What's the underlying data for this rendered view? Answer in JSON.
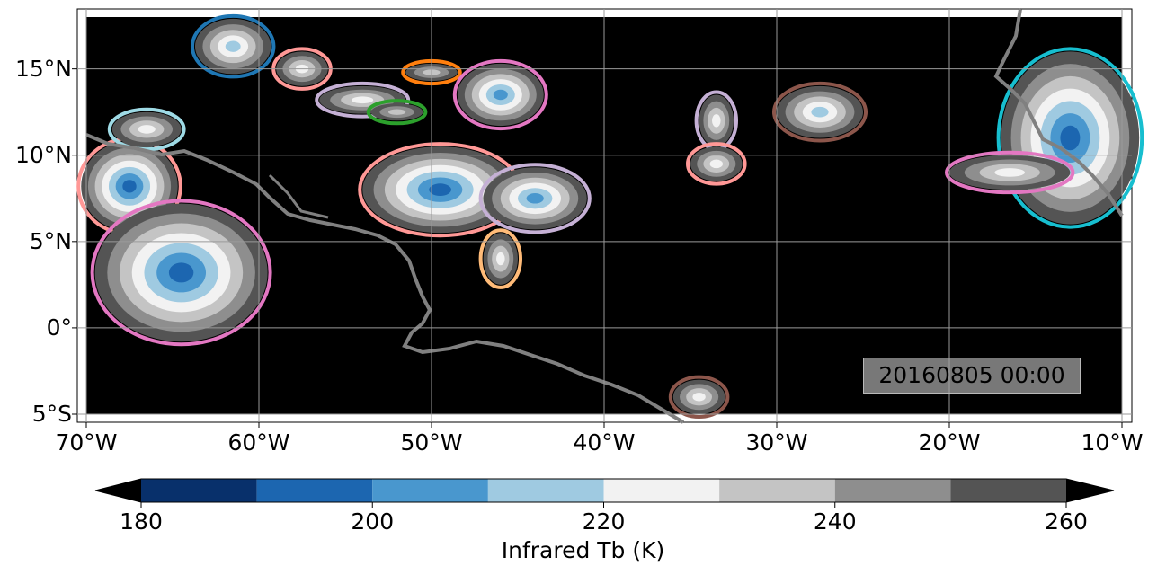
{
  "map": {
    "lon_range": [
      -70,
      -10
    ],
    "lat_range": [
      -5,
      18
    ],
    "background": "#000000",
    "gridlines": true,
    "coastline_color": "#808080",
    "lon_ticks": [
      {
        "value": -70,
        "label": "70°W"
      },
      {
        "value": -60,
        "label": "60°W"
      },
      {
        "value": -50,
        "label": "50°W"
      },
      {
        "value": -40,
        "label": "40°W"
      },
      {
        "value": -30,
        "label": "30°W"
      },
      {
        "value": -20,
        "label": "20°W"
      },
      {
        "value": -10,
        "label": "10°W"
      }
    ],
    "lat_ticks": [
      {
        "value": 15,
        "label": "15°N"
      },
      {
        "value": 10,
        "label": "10°N"
      },
      {
        "value": 5,
        "label": "5°N"
      },
      {
        "value": 0,
        "label": "0°"
      },
      {
        "value": -5,
        "label": "5°S"
      }
    ],
    "timestamp": "20160805 00:00",
    "cloud_systems": [
      {
        "lon": -67.5,
        "lat": 8.2,
        "rx": 2.8,
        "ry": 2.6,
        "outline": "#ff9896"
      },
      {
        "lon": -64.5,
        "lat": 3.2,
        "rx": 5.0,
        "ry": 4.0,
        "outline": "#e377c2"
      },
      {
        "lon": -66.5,
        "lat": 11.5,
        "rx": 2.0,
        "ry": 1.0,
        "outline": "#9edae5"
      },
      {
        "lon": -61.5,
        "lat": 16.3,
        "rx": 2.2,
        "ry": 1.6,
        "outline": "#1f77b4"
      },
      {
        "lon": -57.5,
        "lat": 15.0,
        "rx": 1.5,
        "ry": 1.0,
        "outline": "#ff9896"
      },
      {
        "lon": -54.0,
        "lat": 13.2,
        "rx": 2.5,
        "ry": 0.8,
        "outline": "#c5b0d5"
      },
      {
        "lon": -52.0,
        "lat": 12.5,
        "rx": 1.5,
        "ry": 0.5,
        "outline": "#2ca02c"
      },
      {
        "lon": -50.0,
        "lat": 14.8,
        "rx": 1.5,
        "ry": 0.5,
        "outline": "#ff7f0e"
      },
      {
        "lon": -46.0,
        "lat": 13.5,
        "rx": 2.5,
        "ry": 1.8,
        "outline": "#e377c2"
      },
      {
        "lon": -49.5,
        "lat": 8.0,
        "rx": 4.5,
        "ry": 2.5,
        "outline": "#ff9896"
      },
      {
        "lon": -44.0,
        "lat": 7.5,
        "rx": 3.0,
        "ry": 1.8,
        "outline": "#c5b0d5"
      },
      {
        "lon": -46.0,
        "lat": 4.0,
        "rx": 1.0,
        "ry": 1.5,
        "outline": "#ffbb78"
      },
      {
        "lon": -33.5,
        "lat": 12.0,
        "rx": 1.0,
        "ry": 1.5,
        "outline": "#c5b0d5"
      },
      {
        "lon": -33.5,
        "lat": 9.5,
        "rx": 1.5,
        "ry": 1.0,
        "outline": "#ff9896"
      },
      {
        "lon": -27.5,
        "lat": 12.5,
        "rx": 2.5,
        "ry": 1.5,
        "outline": "#8c564b"
      },
      {
        "lon": -13.0,
        "lat": 11.0,
        "rx": 4.0,
        "ry": 5.0,
        "outline": "#17becf"
      },
      {
        "lon": -16.5,
        "lat": 9.0,
        "rx": 3.5,
        "ry": 1.0,
        "outline": "#e377c2"
      },
      {
        "lon": -34.5,
        "lat": -4.0,
        "rx": 1.5,
        "ry": 1.0,
        "outline": "#8c564b"
      }
    ]
  },
  "colorbar": {
    "label": "Infrared Tb (K)",
    "min": 180,
    "max": 260,
    "extend": "both",
    "under_color": "#000000",
    "over_color": "#000000",
    "bins": [
      {
        "from": 180,
        "to": 190,
        "color": "#08306b"
      },
      {
        "from": 190,
        "to": 200,
        "color": "#1c66b0"
      },
      {
        "from": 200,
        "to": 210,
        "color": "#4997ce"
      },
      {
        "from": 210,
        "to": 220,
        "color": "#9fcae1"
      },
      {
        "from": 220,
        "to": 230,
        "color": "#f2f2f2"
      },
      {
        "from": 230,
        "to": 240,
        "color": "#c4c4c4"
      },
      {
        "from": 240,
        "to": 250,
        "color": "#8e8e8e"
      },
      {
        "from": 250,
        "to": 260,
        "color": "#545454"
      }
    ],
    "ticks": [
      {
        "value": 180,
        "label": "180"
      },
      {
        "value": 200,
        "label": "200"
      },
      {
        "value": 220,
        "label": "220"
      },
      {
        "value": 240,
        "label": "240"
      },
      {
        "value": 260,
        "label": "260"
      }
    ]
  }
}
